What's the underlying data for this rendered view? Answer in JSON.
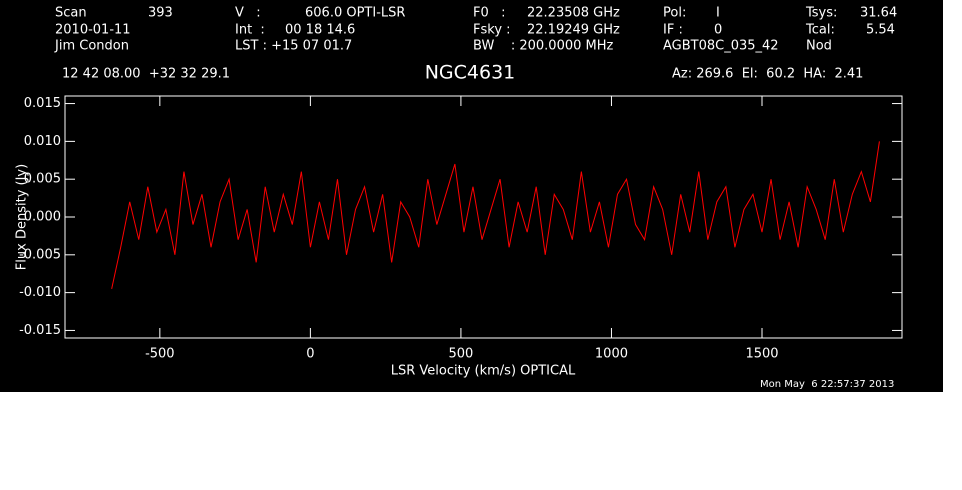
{
  "chart_data": {
    "type": "line",
    "title": "NGC4631",
    "annotations": [
      "Scan",
      "393",
      "V   :",
      "606.0 OPTI-LSR",
      "F0   :",
      "22.23508 GHz",
      "Pol:",
      "I",
      "Tsys:",
      "31.64",
      "2010-01-11",
      "Int  :",
      "00 18 14.6",
      "Fsky :",
      "22.19249 GHz",
      "IF :",
      "0",
      "Tcal:",
      "5.54",
      "Jim Condon",
      "LST : +15 07 01.7",
      "BW    : 200.0000 MHz",
      "AGBT08C_035_42",
      "Nod",
      "12 42 08.00  +32 32 29.1",
      "Az: 269.6  El:  60.2  HA:  2.41",
      "Mon May  6 22:57:37 2013"
    ],
    "x_label": "LSR Velocity (km/s) OPTICAL",
    "y_label": "Flux Density (Jy)",
    "x": [
      -660,
      -630,
      -600,
      -570,
      -540,
      -510,
      -480,
      -450,
      -420,
      -390,
      -360,
      -330,
      -300,
      -270,
      -240,
      -210,
      -180,
      -150,
      -120,
      -90,
      -60,
      -30,
      0,
      30,
      60,
      90,
      120,
      150,
      180,
      210,
      240,
      270,
      300,
      330,
      360,
      390,
      420,
      450,
      480,
      510,
      540,
      570,
      600,
      630,
      660,
      690,
      720,
      750,
      780,
      810,
      840,
      870,
      900,
      930,
      960,
      990,
      1020,
      1050,
      1080,
      1110,
      1140,
      1170,
      1200,
      1230,
      1260,
      1290,
      1320,
      1350,
      1380,
      1410,
      1440,
      1470,
      1500,
      1530,
      1560,
      1590,
      1620,
      1650,
      1680,
      1710,
      1740,
      1770,
      1800,
      1830,
      1860,
      1890
    ],
    "values": [
      -0.0095,
      -0.004,
      0.002,
      -0.003,
      0.004,
      -0.002,
      0.001,
      -0.005,
      0.006,
      -0.001,
      0.003,
      -0.004,
      0.002,
      0.005,
      -0.003,
      0.001,
      -0.006,
      0.004,
      -0.002,
      0.003,
      -0.001,
      0.006,
      -0.004,
      0.002,
      -0.003,
      0.005,
      -0.005,
      0.001,
      0.004,
      -0.002,
      0.003,
      -0.006,
      0.002,
      0,
      -0.004,
      0.005,
      -0.001,
      0.003,
      0.007,
      -0.002,
      0.004,
      -0.003,
      0.001,
      0.005,
      -0.004,
      0.002,
      -0.002,
      0.004,
      -0.005,
      0.003,
      0.001,
      -0.003,
      0.006,
      -0.002,
      0.002,
      -0.004,
      0.003,
      0.005,
      -0.001,
      -0.003,
      0.004,
      0.001,
      -0.005,
      0.003,
      -0.002,
      0.006,
      -0.003,
      0.002,
      0.004,
      -0.004,
      0.001,
      0.003,
      -0.002,
      0.005,
      -0.003,
      0.002,
      -0.004,
      0.004,
      0.001,
      -0.003,
      0.005,
      -0.002,
      0.003,
      0.006,
      0.002,
      0.01
    ],
    "color": "#ff0000",
    "xlim": [
      -815,
      1965
    ],
    "ylim": [
      -0.016,
      0.016
    ],
    "xticks": [
      -500,
      0,
      500,
      1000,
      1500
    ],
    "yticks": [
      -0.015,
      {
        "value": -0.01,
        "label": "-0.010"
      },
      -0.005,
      {
        "value": 0,
        "label": "0.000"
      },
      0.005,
      {
        "value": 0.01,
        "label": "0.010"
      },
      0.015
    ]
  }
}
